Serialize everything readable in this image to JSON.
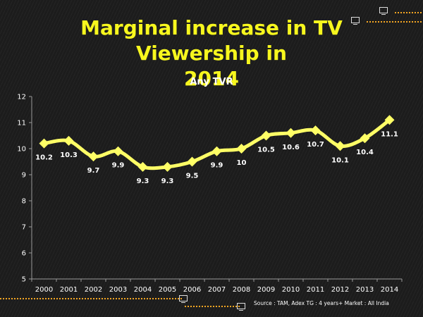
{
  "slide": {
    "title_line1": "Marginal increase in TV Viewership in",
    "title_line2": "2014",
    "source": "Source : TAM, Adex  TG : 4 years+ Market : All India"
  },
  "colors": {
    "accent": "#f7f71e",
    "line": "#ffff66",
    "marker": "#ffff66",
    "text": "#ffffff",
    "axis_text": "#ffffff",
    "dots": "#f5a623"
  },
  "icons": [
    "tv-icon",
    "tv-icon",
    "tv-icon"
  ],
  "chart_data": {
    "type": "line",
    "title": "Any TVR",
    "xlabel": "",
    "ylabel": "",
    "categories": [
      "2000",
      "2001",
      "2002",
      "2003",
      "2004",
      "2005",
      "2006",
      "2007",
      "2008",
      "2009",
      "2010",
      "2011",
      "2012",
      "2013",
      "2014"
    ],
    "series": [
      {
        "values": [
          10.2,
          10.3,
          9.7,
          9.9,
          9.3,
          9.3,
          9.5,
          9.9,
          10,
          10.5,
          10.6,
          10.7,
          10.1,
          10.4,
          11.1
        ],
        "labels": [
          "10.2",
          "10.3",
          "9.7",
          "9.9",
          "9.3",
          "9.3",
          "9.5",
          "9.9",
          "10",
          "10.5",
          "10.6",
          "10.7",
          "10.1",
          "10.4",
          "11.1"
        ]
      }
    ],
    "ylim": [
      5,
      12
    ],
    "yticks": [
      "5",
      "6",
      "7",
      "8",
      "9",
      "10",
      "11",
      "12"
    ],
    "grid": false,
    "legend": "none",
    "smooth": true
  }
}
